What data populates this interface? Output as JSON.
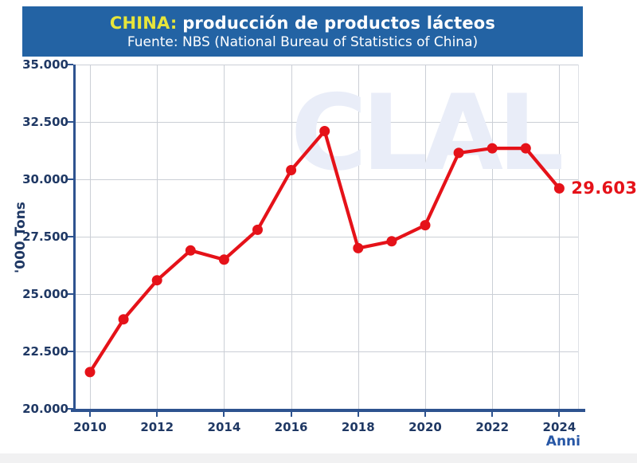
{
  "header": {
    "title_highlight": "CHINA:",
    "title_rest": "producción de productos lácteos",
    "subtitle": "Fuente: NBS (National Bureau of Statistics of China)"
  },
  "colors": {
    "banner_bg": "#2363A4",
    "title_highlight": "#E7E53A",
    "title_text": "#FFFFFF",
    "axis_text": "#1F3864",
    "axis_line": "#2E538F",
    "grid_line": "#CBCFD6",
    "plot_right_border": "#DEE1E6",
    "series_red": "#E51219",
    "watermark_color": "#E9EDF8",
    "data_label_color": "#E51219"
  },
  "chart_data": {
    "type": "line",
    "title": "CHINA: producción de productos lácteos",
    "subtitle": "Fuente: NBS (National Bureau of Statistics of China)",
    "xlabel": "Anni",
    "ylabel": "'000 Tons",
    "x": [
      2010,
      2011,
      2012,
      2013,
      2014,
      2015,
      2016,
      2017,
      2018,
      2019,
      2020,
      2021,
      2022,
      2023,
      2024
    ],
    "values": [
      21600,
      23900,
      25600,
      26900,
      26500,
      27800,
      30400,
      32100,
      27000,
      27300,
      28000,
      31150,
      31350,
      31350,
      29603
    ],
    "series_name": "Producción de productos lácteos",
    "ylim": [
      20000,
      35000
    ],
    "xlim": [
      2009.5,
      2024.6
    ],
    "grid": true,
    "legend_position": "none",
    "y_ticks": [
      {
        "value": 20000,
        "label": "20.000"
      },
      {
        "value": 22500,
        "label": "22.500"
      },
      {
        "value": 25000,
        "label": "25.000"
      },
      {
        "value": 27500,
        "label": "27.500"
      },
      {
        "value": 30000,
        "label": "30.000"
      },
      {
        "value": 32500,
        "label": "32.500"
      },
      {
        "value": 35000,
        "label": "35.000"
      }
    ],
    "x_ticks": [
      {
        "value": 2010,
        "label": "2010"
      },
      {
        "value": 2012,
        "label": "2012"
      },
      {
        "value": 2014,
        "label": "2014"
      },
      {
        "value": 2016,
        "label": "2016"
      },
      {
        "value": 2018,
        "label": "2018"
      },
      {
        "value": 2020,
        "label": "2020"
      },
      {
        "value": 2022,
        "label": "2022"
      },
      {
        "value": 2024,
        "label": "2024"
      }
    ],
    "last_point_label": "29.603",
    "watermark": "CLAL"
  }
}
